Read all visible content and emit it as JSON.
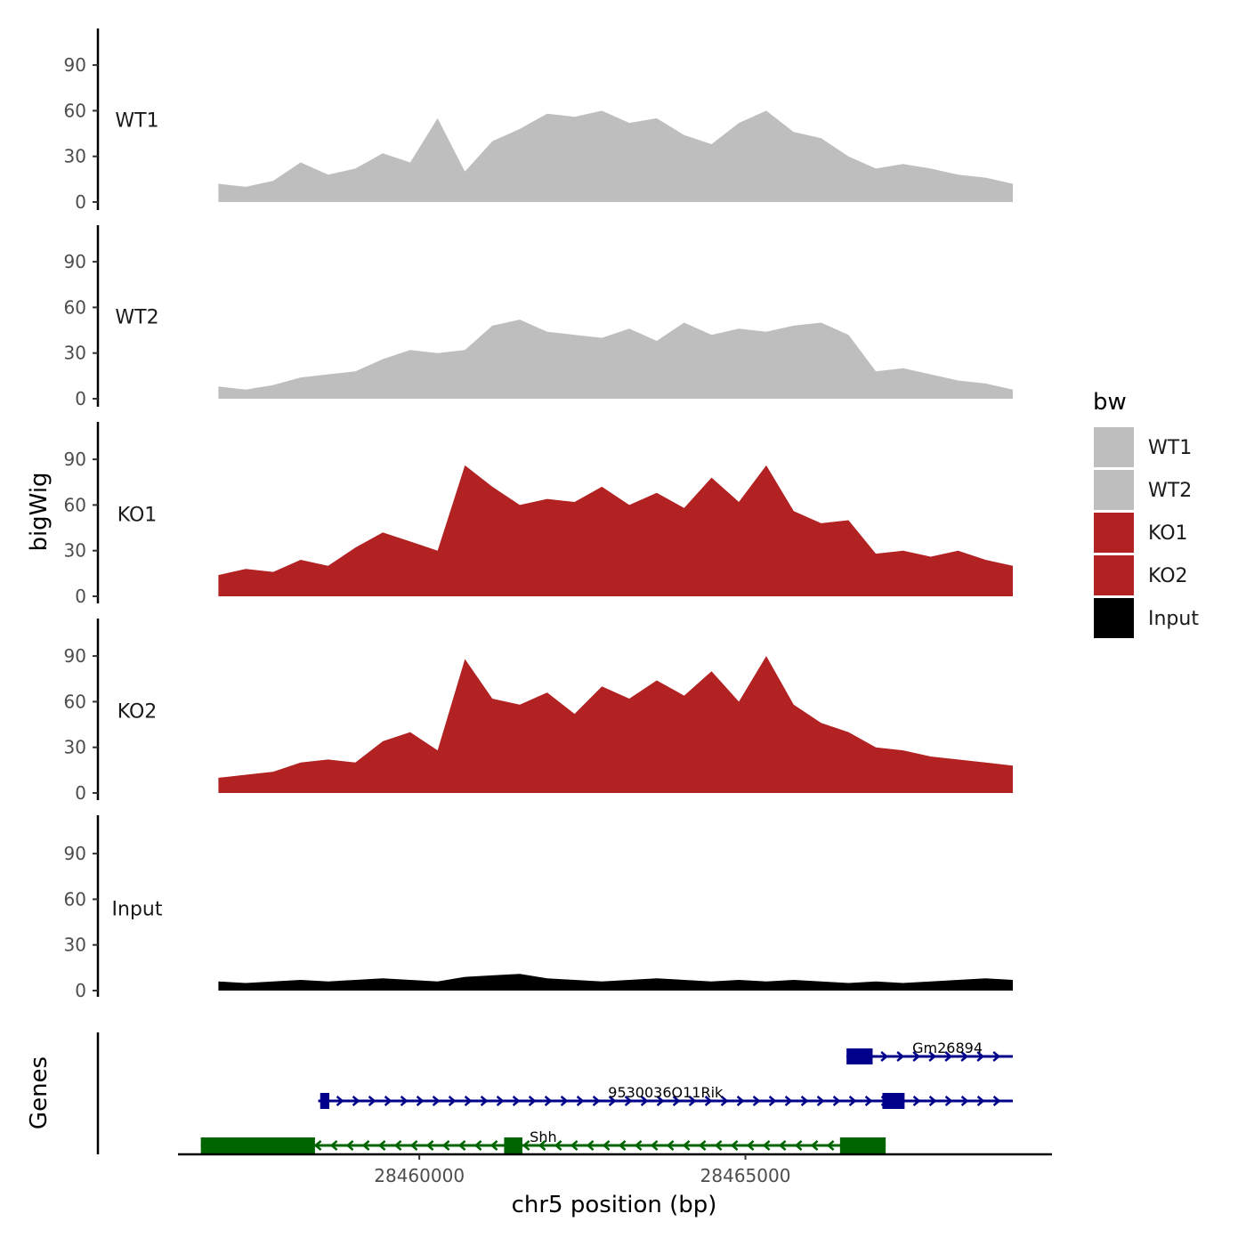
{
  "chart_data": {
    "type": "area",
    "ylabel": "bigWig",
    "genes_label": "Genes",
    "xlabel": "chr5 position (bp)",
    "xlim": [
      28456300,
      28469700
    ],
    "ylim": [
      0,
      112
    ],
    "x_ticks": [
      28460000,
      28465000
    ],
    "x_tick_labels": [
      "28460000",
      "28465000"
    ],
    "y_ticks": [
      0,
      30,
      60,
      90
    ],
    "y_tick_labels": [
      "0",
      "30",
      "60",
      "90"
    ],
    "legend": {
      "title": "bw",
      "entries": [
        {
          "label": "WT1",
          "color": "#bebebe"
        },
        {
          "label": "WT2",
          "color": "#bebebe"
        },
        {
          "label": "KO1",
          "color": "#b22222"
        },
        {
          "label": "KO2",
          "color": "#b22222"
        },
        {
          "label": "Input",
          "color": "#000000"
        }
      ]
    },
    "x": [
      28456920,
      28457340,
      28457760,
      28458180,
      28458600,
      28459020,
      28459440,
      28459860,
      28460280,
      28460700,
      28461120,
      28461540,
      28461960,
      28462380,
      28462800,
      28463220,
      28463640,
      28464060,
      28464480,
      28464900,
      28465320,
      28465740,
      28466160,
      28466580,
      28467000,
      28467420,
      28467840,
      28468260,
      28468680,
      28469100
    ],
    "series": [
      {
        "name": "WT1",
        "color": "#bebebe",
        "values": [
          12,
          10,
          14,
          26,
          18,
          22,
          32,
          26,
          55,
          20,
          40,
          48,
          58,
          56,
          60,
          52,
          55,
          44,
          38,
          52,
          60,
          46,
          42,
          30,
          22,
          25,
          22,
          18,
          16,
          12
        ]
      },
      {
        "name": "WT2",
        "color": "#bebebe",
        "values": [
          8,
          6,
          9,
          14,
          16,
          18,
          26,
          32,
          30,
          32,
          48,
          52,
          44,
          42,
          40,
          46,
          38,
          50,
          42,
          46,
          44,
          48,
          50,
          42,
          18,
          20,
          16,
          12,
          10,
          6
        ]
      },
      {
        "name": "KO1",
        "color": "#b22222",
        "values": [
          14,
          18,
          16,
          24,
          20,
          32,
          42,
          36,
          30,
          86,
          72,
          60,
          64,
          62,
          72,
          60,
          68,
          58,
          78,
          62,
          86,
          56,
          48,
          50,
          28,
          30,
          26,
          30,
          24,
          20
        ]
      },
      {
        "name": "KO2",
        "color": "#b22222",
        "values": [
          10,
          12,
          14,
          20,
          22,
          20,
          34,
          40,
          28,
          88,
          62,
          58,
          66,
          52,
          70,
          62,
          74,
          64,
          80,
          60,
          90,
          58,
          46,
          40,
          30,
          28,
          24,
          22,
          20,
          18
        ]
      },
      {
        "name": "Input",
        "color": "#000000",
        "values": [
          6,
          5,
          6,
          7,
          6,
          7,
          8,
          7,
          6,
          9,
          10,
          11,
          8,
          7,
          6,
          7,
          8,
          7,
          6,
          7,
          6,
          7,
          6,
          5,
          6,
          5,
          6,
          7,
          8,
          7
        ]
      }
    ],
    "genes": [
      {
        "name": "Gm26894",
        "start": 28466550,
        "end": 28469100,
        "strand": "+",
        "color": "#00008b",
        "exons": [
          [
            28466550,
            28466950
          ]
        ]
      },
      {
        "name": "9530036O11Rik",
        "start": 28458450,
        "end": 28469100,
        "strand": "+",
        "color": "#00008b",
        "exons": [
          [
            28458480,
            28458620
          ],
          [
            28467100,
            28467440
          ]
        ]
      },
      {
        "name": "Shh",
        "start": 28456650,
        "end": 28467150,
        "strand": "-",
        "color": "#006400",
        "exons": [
          [
            28456650,
            28458400
          ],
          [
            28461300,
            28461580
          ],
          [
            28466450,
            28467150
          ]
        ]
      }
    ]
  }
}
